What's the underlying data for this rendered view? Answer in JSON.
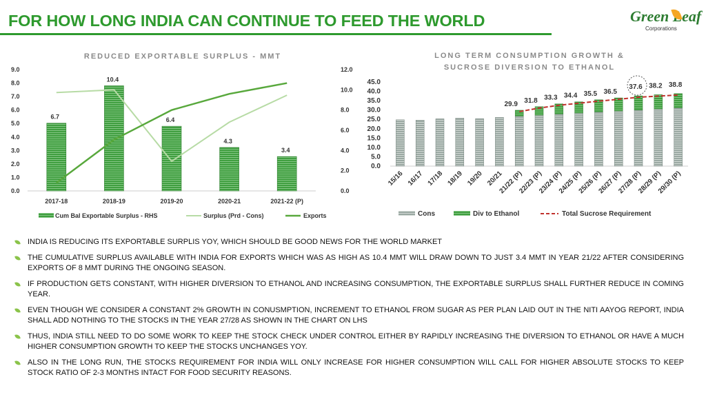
{
  "header": {
    "title": "FOR HOW LONG INDIA CAN CONTINUE TO FEED THE WORLD",
    "logo_word": "Green Leaf",
    "logo_sub": "Corporations"
  },
  "colors": {
    "title": "#2e9a2e",
    "cum_bar": "#3f9e3f",
    "surplus_line": "#b7dba5",
    "exports_line": "#58a83c",
    "cons_bar": "#9aa8a2",
    "div_bar": "#3f9e3f",
    "total_line": "#c0302c"
  },
  "chart_data": [
    {
      "type": "bar",
      "title": "REDUCED EXPORTABLE SURPLUS - MMT",
      "categories": [
        "2017-18",
        "2018-19",
        "2019-20",
        "2020-21",
        "2021-22 (P)"
      ],
      "series": [
        {
          "name": "Cum Bal Exportable Surplus - RHS",
          "type": "bar",
          "axis": "right",
          "values": [
            6.7,
            10.4,
            6.4,
            4.3,
            3.4
          ]
        },
        {
          "name": "Surplus (Prd - Cons)",
          "type": "line",
          "axis": "left",
          "values": [
            7.3,
            7.5,
            2.2,
            5.1,
            7.1
          ]
        },
        {
          "name": "Exports",
          "type": "line",
          "axis": "left",
          "values": [
            0.6,
            3.8,
            6.0,
            7.2,
            8.0
          ]
        }
      ],
      "bar_labels": [
        "6.7",
        "10.4",
        "6.4",
        "4.3",
        "3.4"
      ],
      "left_axis": {
        "ylim": [
          0,
          9
        ],
        "ticks": [
          "0.0",
          "1.0",
          "2.0",
          "3.0",
          "4.0",
          "5.0",
          "6.0",
          "7.0",
          "8.0",
          "9.0"
        ]
      },
      "right_axis": {
        "ylim": [
          0,
          12
        ],
        "ticks": [
          "0.0",
          "2.0",
          "4.0",
          "6.0",
          "8.0",
          "10.0",
          "12.0"
        ]
      },
      "legend": "bottom"
    },
    {
      "type": "bar",
      "title_line1": "LONG TERM CONSUMPTION GROWTH &",
      "title_line2": "SUCROSE DIVERSION TO ETHANOL",
      "categories": [
        "15/16",
        "16/17",
        "17/18",
        "18/19",
        "19/20",
        "20/21",
        "21/22 (P)",
        "22/23 (P)",
        "23/24 (P)",
        "24/25 (P)",
        "25/26 (P)",
        "26/27 (P)",
        "27/28 (P)",
        "28/29 (P)",
        "29/30 (P)"
      ],
      "series": [
        {
          "name": "Cons",
          "type": "bar",
          "stack": "s",
          "values": [
            24.8,
            24.6,
            25.3,
            25.7,
            25.4,
            26.1,
            26.8,
            27.3,
            27.9,
            28.4,
            29.0,
            29.5,
            30.0,
            30.6,
            31.2
          ]
        },
        {
          "name": "Div to Ethanol",
          "type": "bar",
          "stack": "s",
          "values": [
            0.0,
            0.0,
            0.0,
            0.0,
            0.0,
            0.0,
            3.1,
            4.5,
            5.4,
            6.0,
            6.5,
            7.0,
            7.6,
            7.6,
            7.6
          ]
        },
        {
          "name": "Total Sucrose Requirement",
          "type": "line",
          "style": "dashed",
          "values": [
            null,
            null,
            null,
            null,
            null,
            null,
            29.9,
            31.8,
            33.3,
            34.4,
            35.5,
            36.5,
            37.6,
            38.2,
            38.8
          ]
        }
      ],
      "total_labels": [
        "",
        "",
        "",
        "",
        "",
        "",
        "29.9",
        "31.8",
        "33.3",
        "34.4",
        "35.5",
        "36.5",
        "37.6",
        "38.2",
        "38.8"
      ],
      "y_axis": {
        "ylim": [
          0,
          45
        ],
        "ticks": [
          "0.0",
          "5.0",
          "10.0",
          "15.0",
          "20.0",
          "25.0",
          "30.0",
          "35.0",
          "40.0",
          "45.0"
        ]
      },
      "highlight_category": "27/28 (P)",
      "legend": "bottom"
    }
  ],
  "bullets": [
    "INDIA IS REDUCING ITS EXPORTABLE SURPLIS YOY, WHICH SHOULD BE GOOD NEWS FOR THE WORLD MARKET",
    "THE CUMULATIVE SURPLUS AVAILABLE WITH INDIA FOR EXPORTS WHICH WAS AS HIGH AS 10.4 MMT WILL DRAW DOWN TO JUST 3.4 MMT IN YEAR 21/22 AFTER CONSIDERING EXPORTS OF 8 MMT DURING THE ONGOING SEASON.",
    "IF PRODUCTION GETS CONSTANT, WITH HIGHER DIVERSION TO ETHANOL AND INCREASING CONSUMPTION, THE EXPORTABLE SURPLUS SHALL FURTHER REDUCE IN COMING YEAR.",
    "EVEN THOUGH WE CONSIDER A CONSTANT 2% GROWTH IN CONUSMPTION, INCREMENT TO ETHANOL FROM SUGAR AS PER PLAN LAID OUT IN THE NITI AAYOG REPORT, INDIA SHALL ADD NOTHING TO THE STOCKS IN THE YEAR 27/28 AS SHOWN IN THE CHART ON LHS",
    "THUS, INDIA STILL NEED TO DO SOME WORK TO KEEP THE STOCK CHECK UNDER CONTROL EITHER BY RAPIDLY INCREASING THE DIVERSION TO ETHANOL OR HAVE A MUCH HIGHER CONSUMPTION GROWTH TO KEEP THE STOCKS UNCHANGES YOY.",
    "ALSO IN THE LONG RUN, THE STOCKS REQUIREMENT FOR INDIA WILL ONLY INCREASE FOR HIGHER CONSUMPTION WILL CALL FOR HIGHER ABSOLUTE STOCKS TO KEEP STOCK RATIO OF 2-3 MONTHS INTACT FOR FOOD SECURITY REASONS."
  ]
}
